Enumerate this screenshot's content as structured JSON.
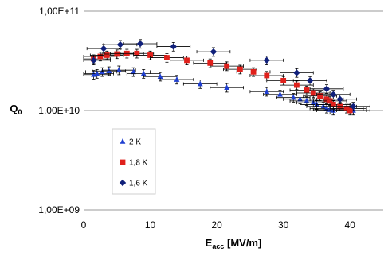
{
  "chart_data": {
    "type": "scatter",
    "xlabel": "E",
    "xlabel_sub": "acc",
    "xlabel_unit": " [MV/m]",
    "ylabel": "Q",
    "ylabel_sub": "0",
    "xlim": [
      0,
      45
    ],
    "ylim": [
      1000000000.0,
      100000000000.0
    ],
    "y_scale": "log",
    "x_ticks": [
      0,
      10,
      20,
      30,
      40
    ],
    "x_tick_labels": [
      "0",
      "10",
      "20",
      "30",
      "40"
    ],
    "y_ticks": [
      1000000000.0,
      10000000000.0,
      100000000000.0
    ],
    "y_tick_labels": [
      "1,00E+09",
      "1,00E+10",
      "1,00E+11"
    ],
    "grid": "horizontal major lines",
    "legend_position": "lower-left inside plot",
    "series": [
      {
        "name": "2 K",
        "marker": "triangle",
        "color": "#1f3fd0",
        "points": [
          [
            1.5,
            23000000000.0
          ],
          [
            2,
            23500000000.0
          ],
          [
            2.8,
            24500000000.0
          ],
          [
            3.8,
            25000000000.0
          ],
          [
            5.3,
            25500000000.0
          ],
          [
            7.5,
            24500000000.0
          ],
          [
            9,
            23500000000.0
          ],
          [
            11.5,
            22000000000.0
          ],
          [
            14,
            20500000000.0
          ],
          [
            17.5,
            18500000000.0
          ],
          [
            21.5,
            17000000000.0
          ],
          [
            27.5,
            15500000000.0
          ],
          [
            29.5,
            14500000000.0
          ],
          [
            31.5,
            13500000000.0
          ],
          [
            32.5,
            13000000000.0
          ],
          [
            33.5,
            12500000000.0
          ],
          [
            34.5,
            12000000000.0
          ],
          [
            35,
            11500000000.0
          ],
          [
            36,
            11000000000.0
          ],
          [
            36.5,
            10500000000.0
          ],
          [
            37,
            10200000000.0
          ],
          [
            37.5,
            10000000000.0
          ],
          [
            40,
            10500000000.0
          ],
          [
            40.5,
            10000000000.0
          ]
        ],
        "x_err": 2.5,
        "y_err_frac": 0.1
      },
      {
        "name": "1,8 K",
        "marker": "square",
        "color": "#e0201b",
        "points": [
          [
            1.5,
            33000000000.0
          ],
          [
            2.5,
            35000000000.0
          ],
          [
            3.5,
            36000000000.0
          ],
          [
            5,
            37000000000.0
          ],
          [
            6.5,
            37500000000.0
          ],
          [
            8,
            37500000000.0
          ],
          [
            10,
            36000000000.0
          ],
          [
            12.5,
            34000000000.0
          ],
          [
            15.5,
            32000000000.0
          ],
          [
            19,
            30000000000.0
          ],
          [
            21.5,
            28000000000.0
          ],
          [
            23.5,
            26000000000.0
          ],
          [
            25.5,
            24500000000.0
          ],
          [
            27.5,
            22500000000.0
          ],
          [
            30,
            20000000000.0
          ],
          [
            32,
            18000000000.0
          ],
          [
            33.5,
            16000000000.0
          ],
          [
            34.5,
            15000000000.0
          ],
          [
            35.5,
            14000000000.0
          ],
          [
            36.5,
            13000000000.0
          ],
          [
            37,
            12500000000.0
          ],
          [
            37.5,
            11500000000.0
          ],
          [
            38.5,
            11000000000.0
          ],
          [
            39.5,
            10500000000.0
          ],
          [
            40,
            10000000000.0
          ]
        ],
        "x_err": 2.5,
        "y_err_frac": 0.1
      },
      {
        "name": "1,6 K",
        "marker": "diamond",
        "color": "#10207a",
        "points": [
          [
            1.5,
            32000000000.0
          ],
          [
            3,
            42000000000.0
          ],
          [
            5.5,
            46000000000.0
          ],
          [
            8.5,
            47000000000.0
          ],
          [
            13.5,
            44000000000.0
          ],
          [
            19.5,
            39000000000.0
          ],
          [
            27.5,
            32000000000.0
          ],
          [
            32,
            24000000000.0
          ],
          [
            34,
            20000000000.0
          ],
          [
            36.5,
            16500000000.0
          ],
          [
            37.5,
            14500000000.0
          ],
          [
            38.5,
            13000000000.0
          ],
          [
            40.5,
            11000000000.0
          ]
        ],
        "x_err": 2.5,
        "y_err_frac": 0.1
      }
    ]
  }
}
